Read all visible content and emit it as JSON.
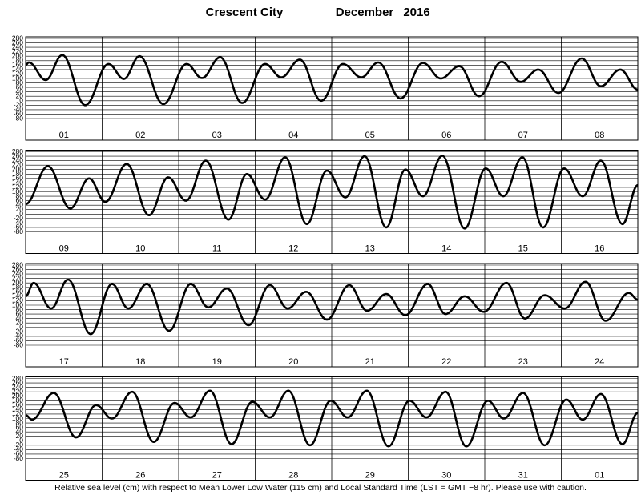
{
  "title": "Crescent City",
  "month": "December",
  "year": "2016",
  "footnote": "Relative sea level (cm) with respect to Mean Lower Low Water (115 cm) and Local Standard Time (LST = GMT −8 hr). Please use with caution.",
  "chart_data": [
    {
      "type": "line",
      "color": "#000000",
      "categories": [
        "01",
        "02",
        "03",
        "04",
        "05",
        "06",
        "07",
        "08"
      ],
      "xlim": [
        0,
        192
      ],
      "xticks": [
        24,
        48,
        72,
        96,
        120,
        144,
        168
      ],
      "ylim": [
        -80,
        280
      ],
      "yticks": [
        280,
        260,
        240,
        220,
        200,
        180,
        160,
        140,
        120,
        100,
        80,
        60,
        40,
        20,
        0,
        -20,
        -40,
        -60,
        -80
      ],
      "x": [
        0,
        1,
        6.3,
        11.5,
        18.7,
        26,
        30.8,
        35.7,
        43.2,
        50.5,
        55.3,
        61,
        67.9,
        75.1,
        80.2,
        86,
        92.7,
        99.5,
        105.3,
        110.6,
        117.6,
        124.6,
        130.2,
        136,
        142.2,
        149.3,
        155.3,
        160.8,
        167.1,
        174.4,
        180.4,
        186.5,
        192
      ],
      "values": [
        160,
        172,
        93,
        205,
        -20,
        165,
        98,
        200,
        -15,
        165,
        102,
        195,
        -10,
        165,
        105,
        185,
        0,
        165,
        105,
        172,
        10,
        170,
        100,
        155,
        20,
        175,
        85,
        140,
        35,
        190,
        65,
        140,
        50
      ]
    },
    {
      "type": "line",
      "color": "#000000",
      "categories": [
        "09",
        "10",
        "11",
        "12",
        "13",
        "14",
        "15",
        "16"
      ],
      "xlim": [
        0,
        192
      ],
      "xticks": [
        24,
        48,
        72,
        96,
        120,
        144,
        168
      ],
      "ylim": [
        -80,
        280
      ],
      "yticks": [
        280,
        260,
        240,
        220,
        200,
        180,
        160,
        140,
        120,
        100,
        80,
        60,
        40,
        20,
        0,
        -20,
        -40,
        -60,
        -80
      ],
      "x": [
        0,
        7,
        14,
        19.9,
        25,
        31.7,
        38.7,
        44.7,
        50.3,
        56.5,
        63.6,
        69.4,
        75.1,
        81.4,
        88.2,
        94.5,
        100.3,
        106.3,
        113.1,
        119.1,
        124.6,
        130.7,
        137.7,
        144.3,
        149.8,
        155.8,
        162.3,
        168.9,
        174.7,
        180.4,
        187.2,
        192
      ],
      "values": [
        45,
        215,
        25,
        160,
        55,
        225,
        -5,
        165,
        60,
        240,
        -25,
        180,
        65,
        255,
        -45,
        195,
        75,
        260,
        -60,
        200,
        80,
        262,
        -65,
        205,
        80,
        255,
        -60,
        205,
        80,
        240,
        -45,
        130
      ]
    },
    {
      "type": "line",
      "color": "#000000",
      "categories": [
        "17",
        "18",
        "19",
        "20",
        "21",
        "22",
        "23",
        "24"
      ],
      "xlim": [
        0,
        192
      ],
      "xticks": [
        24,
        48,
        72,
        96,
        120,
        144,
        168
      ],
      "ylim": [
        -80,
        280
      ],
      "yticks": [
        280,
        260,
        240,
        220,
        200,
        180,
        160,
        140,
        120,
        100,
        80,
        60,
        40,
        20,
        0,
        -20,
        -40,
        -60,
        -80
      ],
      "x": [
        0,
        2.5,
        8,
        13.3,
        20.4,
        27.1,
        32.2,
        38,
        45,
        51.8,
        57.3,
        63.1,
        69.9,
        76.6,
        82.2,
        88,
        94.5,
        101.5,
        107.1,
        113.1,
        119.1,
        126.1,
        131.7,
        137.7,
        143.7,
        150.8,
        156.6,
        162.8,
        169.1,
        175.6,
        181.9,
        189.2,
        192
      ],
      "values": [
        140,
        200,
        85,
        215,
        -30,
        195,
        85,
        195,
        -15,
        195,
        90,
        175,
        10,
        190,
        85,
        160,
        35,
        190,
        75,
        150,
        55,
        195,
        60,
        140,
        70,
        200,
        40,
        145,
        85,
        205,
        30,
        155,
        125
      ]
    },
    {
      "type": "line",
      "color": "#000000",
      "categories": [
        "25",
        "26",
        "27",
        "28",
        "29",
        "30",
        "31",
        "01"
      ],
      "xlim": [
        0,
        192
      ],
      "xticks": [
        24,
        48,
        72,
        96,
        120,
        144,
        168
      ],
      "ylim": [
        -80,
        280
      ],
      "yticks": [
        280,
        260,
        240,
        220,
        200,
        180,
        160,
        140,
        120,
        100,
        80,
        60,
        40,
        20,
        0,
        -20,
        -40,
        -60,
        -80
      ],
      "x": [
        0,
        2,
        8.8,
        15.8,
        22.1,
        27.1,
        33.4,
        40.2,
        46.7,
        51.8,
        57.8,
        64.6,
        71.1,
        76.6,
        82.4,
        89.2,
        95.7,
        101,
        107,
        113.8,
        120.4,
        125.7,
        131.7,
        138.2,
        145,
        150,
        156,
        162.8,
        169.6,
        174.7,
        180.4,
        187.2,
        192
      ],
      "values": [
        115,
        95,
        215,
        15,
        160,
        100,
        220,
        -5,
        170,
        105,
        225,
        -15,
        175,
        105,
        225,
        -20,
        180,
        105,
        225,
        -25,
        180,
        105,
        220,
        -25,
        180,
        100,
        215,
        -20,
        185,
        95,
        210,
        -15,
        125
      ]
    }
  ]
}
